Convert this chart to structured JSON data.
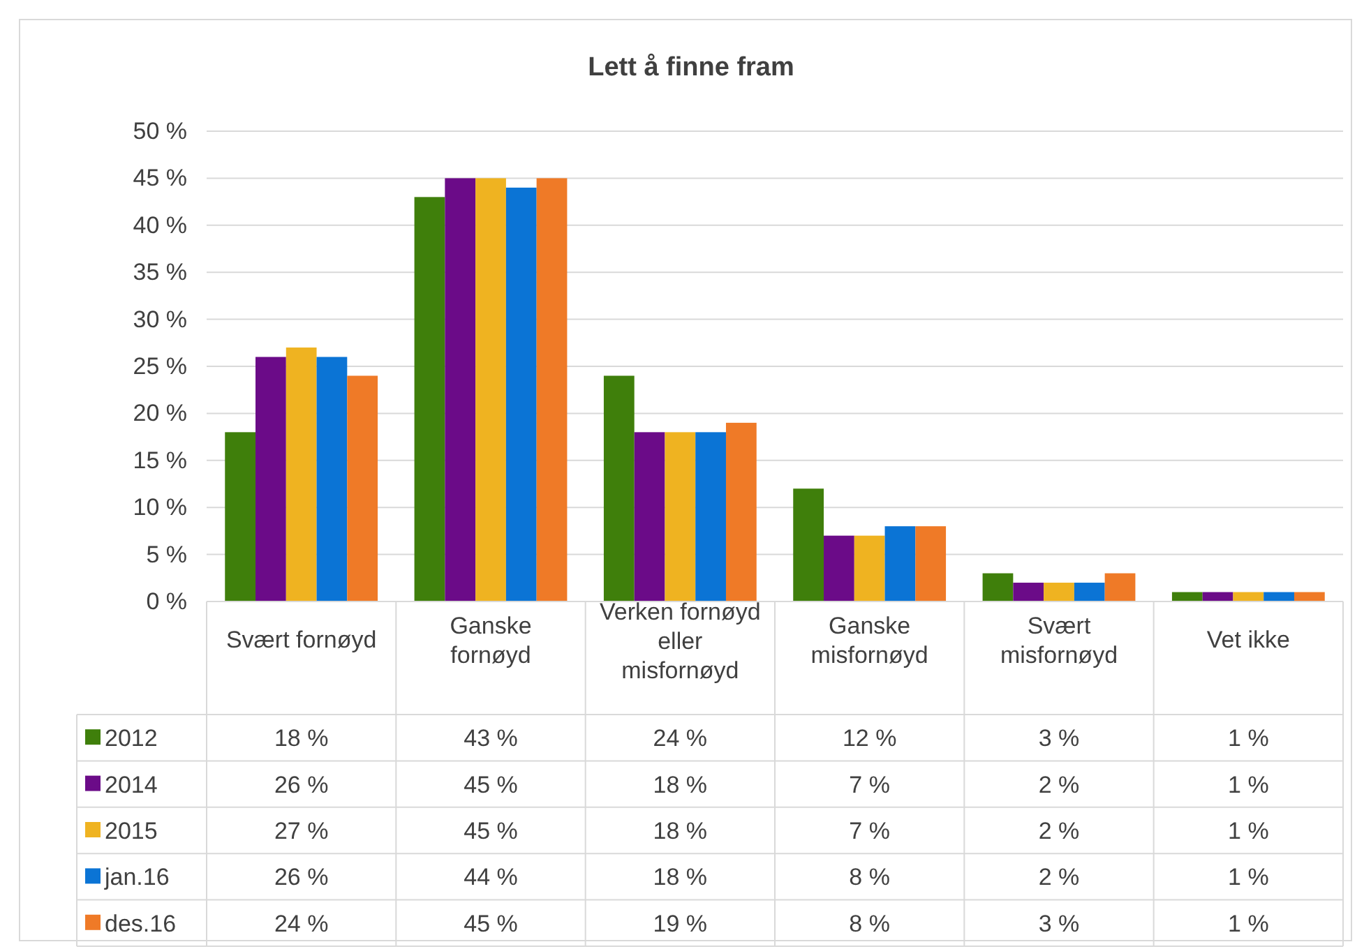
{
  "chart_data": {
    "type": "bar",
    "title": "Lett å finne fram",
    "categories": [
      "Svært fornøyd",
      "Ganske fornøyd",
      "Verken fornøyd eller misfornøyd",
      "Ganske misfornøyd",
      "Svært misfornøyd",
      "Vet ikke"
    ],
    "series": [
      {
        "name": "2012",
        "color": "#3f7f0b",
        "values": [
          18,
          43,
          24,
          12,
          3,
          1
        ],
        "value_labels": [
          "18 %",
          "43 %",
          "24 %",
          "12 %",
          "3 %",
          "1 %"
        ]
      },
      {
        "name": "2014",
        "color": "#6b0b88",
        "values": [
          26,
          45,
          18,
          7,
          2,
          1
        ],
        "value_labels": [
          "26 %",
          "45 %",
          "18 %",
          "7 %",
          "2 %",
          "1 %"
        ]
      },
      {
        "name": "2015",
        "color": "#efb321",
        "values": [
          27,
          45,
          18,
          7,
          2,
          1
        ],
        "value_labels": [
          "27 %",
          "45 %",
          "18 %",
          "7 %",
          "2 %",
          "1 %"
        ]
      },
      {
        "name": "jan.16",
        "color": "#0b74d5",
        "values": [
          26,
          44,
          18,
          8,
          2,
          1
        ],
        "value_labels": [
          "26 %",
          "44 %",
          "18 %",
          "8 %",
          "2 %",
          "1 %"
        ]
      },
      {
        "name": "des.16",
        "color": "#ef7a27",
        "values": [
          24,
          45,
          19,
          8,
          3,
          1
        ],
        "value_labels": [
          "24 %",
          "45 %",
          "19 %",
          "8 %",
          "3 %",
          "1 %"
        ]
      }
    ],
    "ylim": [
      0,
      50
    ],
    "yticks": [
      {
        "value": 0,
        "label": "0 %"
      },
      {
        "value": 5,
        "label": "5 %"
      },
      {
        "value": 10,
        "label": "10 %"
      },
      {
        "value": 15,
        "label": "15 %"
      },
      {
        "value": 20,
        "label": "20 %"
      },
      {
        "value": 25,
        "label": "25 %"
      },
      {
        "value": 30,
        "label": "30 %"
      },
      {
        "value": 35,
        "label": "35 %"
      },
      {
        "value": 40,
        "label": "40 %"
      },
      {
        "value": 45,
        "label": "45 %"
      },
      {
        "value": 50,
        "label": "50 %"
      }
    ],
    "grid": "y",
    "legend": "bottom"
  }
}
